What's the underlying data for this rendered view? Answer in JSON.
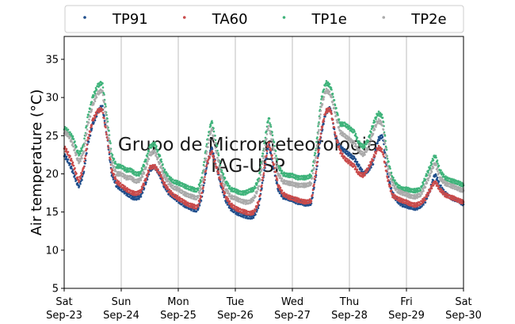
{
  "chart_data": {
    "type": "scatter",
    "ylabel": "Air temperature (°C)",
    "ylim": [
      5,
      38
    ],
    "yticks": [
      5,
      10,
      15,
      20,
      25,
      30,
      35
    ],
    "x_start": "2023-09-23",
    "x_end": "2023-09-30",
    "xticks": [
      {
        "date": "2023-09-23",
        "day": "Sat",
        "date_label": "Sep-23"
      },
      {
        "date": "2023-09-24",
        "day": "Sun",
        "date_label": "Sep-24"
      },
      {
        "date": "2023-09-25",
        "day": "Mon",
        "date_label": "Sep-25"
      },
      {
        "date": "2023-09-26",
        "day": "Tue",
        "date_label": "Sep-26"
      },
      {
        "date": "2023-09-27",
        "day": "Wed",
        "date_label": "Sep-27"
      },
      {
        "date": "2023-09-28",
        "day": "Thu",
        "date_label": "Sep-28"
      },
      {
        "date": "2023-09-29",
        "day": "Fri",
        "date_label": "Sep-29"
      },
      {
        "date": "2023-09-30",
        "day": "Sat",
        "date_label": "Sep-30"
      }
    ],
    "vertical_grid": true,
    "legend_position": "top",
    "watermark": [
      "Grupo de Micrometeorologia",
      "IAG-USP"
    ],
    "x": [
      "2023-09-23 00:00",
      "2023-09-23 02:00",
      "2023-09-23 04:00",
      "2023-09-23 06:00",
      "2023-09-23 08:00",
      "2023-09-23 10:00",
      "2023-09-23 12:00",
      "2023-09-23 14:00",
      "2023-09-23 16:00",
      "2023-09-23 18:00",
      "2023-09-23 20:00",
      "2023-09-23 22:00",
      "2023-09-24 00:00",
      "2023-09-24 02:00",
      "2023-09-24 04:00",
      "2023-09-24 06:00",
      "2023-09-24 08:00",
      "2023-09-24 10:00",
      "2023-09-24 12:00",
      "2023-09-24 14:00",
      "2023-09-24 16:00",
      "2023-09-24 18:00",
      "2023-09-24 20:00",
      "2023-09-24 22:00",
      "2023-09-25 00:00",
      "2023-09-25 02:00",
      "2023-09-25 04:00",
      "2023-09-25 06:00",
      "2023-09-25 08:00",
      "2023-09-25 10:00",
      "2023-09-25 12:00",
      "2023-09-25 14:00",
      "2023-09-25 16:00",
      "2023-09-25 18:00",
      "2023-09-25 20:00",
      "2023-09-25 22:00",
      "2023-09-26 00:00",
      "2023-09-26 02:00",
      "2023-09-26 04:00",
      "2023-09-26 06:00",
      "2023-09-26 08:00",
      "2023-09-26 10:00",
      "2023-09-26 12:00",
      "2023-09-26 14:00",
      "2023-09-26 16:00",
      "2023-09-26 18:00",
      "2023-09-26 20:00",
      "2023-09-26 22:00",
      "2023-09-27 00:00",
      "2023-09-27 02:00",
      "2023-09-27 04:00",
      "2023-09-27 06:00",
      "2023-09-27 08:00",
      "2023-09-27 10:00",
      "2023-09-27 12:00",
      "2023-09-27 14:00",
      "2023-09-27 16:00",
      "2023-09-27 18:00",
      "2023-09-27 20:00",
      "2023-09-27 22:00",
      "2023-09-28 00:00",
      "2023-09-28 02:00",
      "2023-09-28 04:00",
      "2023-09-28 06:00",
      "2023-09-28 08:00",
      "2023-09-28 10:00",
      "2023-09-28 12:00",
      "2023-09-28 14:00",
      "2023-09-28 16:00",
      "2023-09-28 18:00",
      "2023-09-28 20:00",
      "2023-09-28 22:00",
      "2023-09-29 00:00",
      "2023-09-29 02:00",
      "2023-09-29 04:00",
      "2023-09-29 06:00",
      "2023-09-29 08:00",
      "2023-09-29 10:00",
      "2023-09-29 12:00",
      "2023-09-29 14:00",
      "2023-09-29 16:00",
      "2023-09-29 18:00",
      "2023-09-29 20:00",
      "2023-09-29 22:00",
      "2023-09-30 00:00"
    ],
    "series": [
      {
        "name": "TP91",
        "color": "#1f4e8c",
        "values": [
          22.5,
          21.5,
          20.0,
          18.3,
          19.8,
          24.0,
          26.5,
          28.0,
          29.0,
          25.0,
          20.0,
          18.5,
          18.0,
          17.5,
          17.0,
          16.8,
          17.0,
          18.5,
          20.5,
          21.0,
          20.0,
          18.5,
          17.5,
          17.0,
          16.5,
          16.0,
          15.7,
          15.4,
          15.2,
          17.0,
          21.0,
          23.5,
          21.0,
          18.5,
          16.5,
          15.5,
          15.0,
          14.7,
          14.5,
          14.3,
          14.5,
          16.0,
          20.0,
          24.0,
          21.0,
          18.0,
          17.0,
          16.8,
          16.6,
          16.3,
          16.2,
          16.0,
          16.2,
          20.0,
          25.0,
          28.0,
          28.7,
          25.0,
          23.5,
          23.0,
          22.5,
          22.0,
          21.0,
          20.0,
          20.5,
          21.5,
          24.5,
          25.0,
          20.0,
          17.5,
          16.5,
          16.0,
          15.8,
          15.6,
          15.5,
          15.8,
          16.5,
          18.0,
          20.0,
          18.5,
          17.5,
          17.0,
          16.7,
          16.5,
          16.0
        ]
      },
      {
        "name": "TA60",
        "color": "#c94b4b",
        "values": [
          23.5,
          22.5,
          21.0,
          19.0,
          20.5,
          24.5,
          27.0,
          28.2,
          28.5,
          25.0,
          20.5,
          19.0,
          18.5,
          18.0,
          17.6,
          17.4,
          17.6,
          19.0,
          20.8,
          21.0,
          20.2,
          18.8,
          17.8,
          17.2,
          16.8,
          16.4,
          16.0,
          15.8,
          15.6,
          17.5,
          21.3,
          23.0,
          21.0,
          18.8,
          17.0,
          16.0,
          15.5,
          15.2,
          15.0,
          14.8,
          15.0,
          16.5,
          20.3,
          24.3,
          21.5,
          18.5,
          17.4,
          17.0,
          16.8,
          16.6,
          16.4,
          16.3,
          16.5,
          20.5,
          25.5,
          28.2,
          28.5,
          25.3,
          23.0,
          22.0,
          21.5,
          21.0,
          20.0,
          19.8,
          20.8,
          22.0,
          23.5,
          23.0,
          19.5,
          17.2,
          16.8,
          16.5,
          16.3,
          16.0,
          15.9,
          16.2,
          16.8,
          18.0,
          19.0,
          18.0,
          17.3,
          17.0,
          16.8,
          16.5,
          16.3
        ]
      },
      {
        "name": "TP1e",
        "color": "#3fb37a",
        "values": [
          26.0,
          25.5,
          24.5,
          22.5,
          23.5,
          27.5,
          30.0,
          31.5,
          32.0,
          27.5,
          22.5,
          21.0,
          21.0,
          20.5,
          20.5,
          20.0,
          20.0,
          21.5,
          23.5,
          24.0,
          22.5,
          20.5,
          19.5,
          19.0,
          18.8,
          18.5,
          18.2,
          18.0,
          17.8,
          19.5,
          24.0,
          27.0,
          24.0,
          20.5,
          19.0,
          18.0,
          17.8,
          17.5,
          17.5,
          17.8,
          18.0,
          19.5,
          23.5,
          27.5,
          24.5,
          21.0,
          20.0,
          19.8,
          19.8,
          19.5,
          19.5,
          19.5,
          19.8,
          23.5,
          29.5,
          32.0,
          31.5,
          29.0,
          26.5,
          26.5,
          26.0,
          25.5,
          24.0,
          23.5,
          24.5,
          26.5,
          28.0,
          27.5,
          22.0,
          19.5,
          18.5,
          18.0,
          18.0,
          17.8,
          17.8,
          18.0,
          19.5,
          21.0,
          22.5,
          20.5,
          19.5,
          19.2,
          19.0,
          18.8,
          18.5
        ]
      },
      {
        "name": "TP2e",
        "color": "#aaaaaa",
        "values": [
          25.5,
          25.0,
          23.5,
          21.5,
          22.5,
          26.5,
          29.0,
          30.5,
          31.0,
          26.5,
          21.5,
          20.0,
          20.0,
          19.5,
          19.5,
          19.0,
          19.2,
          20.5,
          22.5,
          23.0,
          21.5,
          19.8,
          18.8,
          18.2,
          18.0,
          17.5,
          17.2,
          17.0,
          16.8,
          18.5,
          23.0,
          26.0,
          23.0,
          19.8,
          18.0,
          17.0,
          16.8,
          16.5,
          16.3,
          16.3,
          16.8,
          18.5,
          22.5,
          26.5,
          23.5,
          20.0,
          19.0,
          18.8,
          18.7,
          18.5,
          18.5,
          18.5,
          18.8,
          22.5,
          28.5,
          31.0,
          30.5,
          28.0,
          25.5,
          25.0,
          24.5,
          24.0,
          23.0,
          22.5,
          23.5,
          25.5,
          27.0,
          26.5,
          21.0,
          18.8,
          17.8,
          17.5,
          17.3,
          17.0,
          17.0,
          17.3,
          18.5,
          20.0,
          21.5,
          19.5,
          18.8,
          18.5,
          18.3,
          18.0,
          17.8
        ]
      }
    ]
  }
}
